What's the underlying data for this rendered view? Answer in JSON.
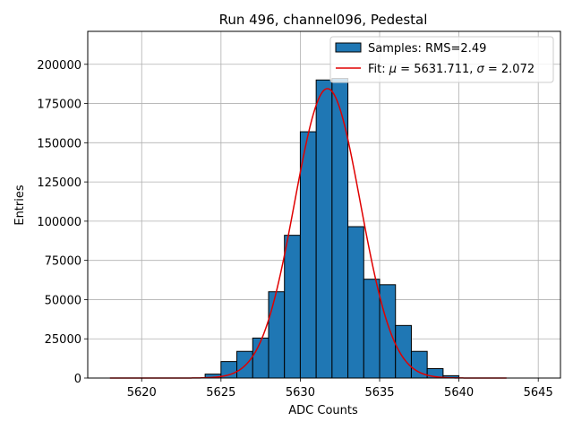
{
  "chart_data": {
    "type": "bar",
    "title": "Run 496, channel096, Pedestal",
    "xlabel": "ADC Counts",
    "ylabel": "Entries",
    "xlim": [
      5616.6,
      5646.4
    ],
    "ylim": [
      0,
      221000
    ],
    "grid": true,
    "x_ticks": [
      5620,
      5625,
      5630,
      5635,
      5640,
      5645
    ],
    "y_ticks": [
      0,
      25000,
      50000,
      75000,
      100000,
      125000,
      150000,
      175000,
      200000
    ],
    "bin_width": 1,
    "bars": [
      {
        "x": 5624.5,
        "value": 2500
      },
      {
        "x": 5625.5,
        "value": 10500
      },
      {
        "x": 5626.5,
        "value": 17000
      },
      {
        "x": 5627.5,
        "value": 25500
      },
      {
        "x": 5628.5,
        "value": 55000
      },
      {
        "x": 5629.5,
        "value": 91000
      },
      {
        "x": 5630.5,
        "value": 157000
      },
      {
        "x": 5631.5,
        "value": 190000
      },
      {
        "x": 5632.5,
        "value": 191000
      },
      {
        "x": 5633.5,
        "value": 96500
      },
      {
        "x": 5634.5,
        "value": 63000
      },
      {
        "x": 5635.5,
        "value": 59500
      },
      {
        "x": 5636.5,
        "value": 33500
      },
      {
        "x": 5637.5,
        "value": 17000
      },
      {
        "x": 5638.5,
        "value": 6000
      },
      {
        "x": 5639.5,
        "value": 1500
      }
    ],
    "fit": {
      "mu": 5631.711,
      "sigma": 2.072,
      "amplitude": 184500,
      "x_range": [
        5618,
        5643
      ]
    },
    "legend": {
      "position": "top-right",
      "samples_label": "Samples: RMS=2.49",
      "fit_label_prefix": "Fit: ",
      "fit_mu_symbol": "μ",
      "fit_mu_text": " = 5631.711, ",
      "fit_sigma_symbol": "σ",
      "fit_sigma_text": " = 2.072"
    },
    "colors": {
      "bar_fill": "#1f77b4",
      "bar_edge": "#000000",
      "fit_line": "#e00000",
      "grid": "#b0b0b0"
    }
  }
}
